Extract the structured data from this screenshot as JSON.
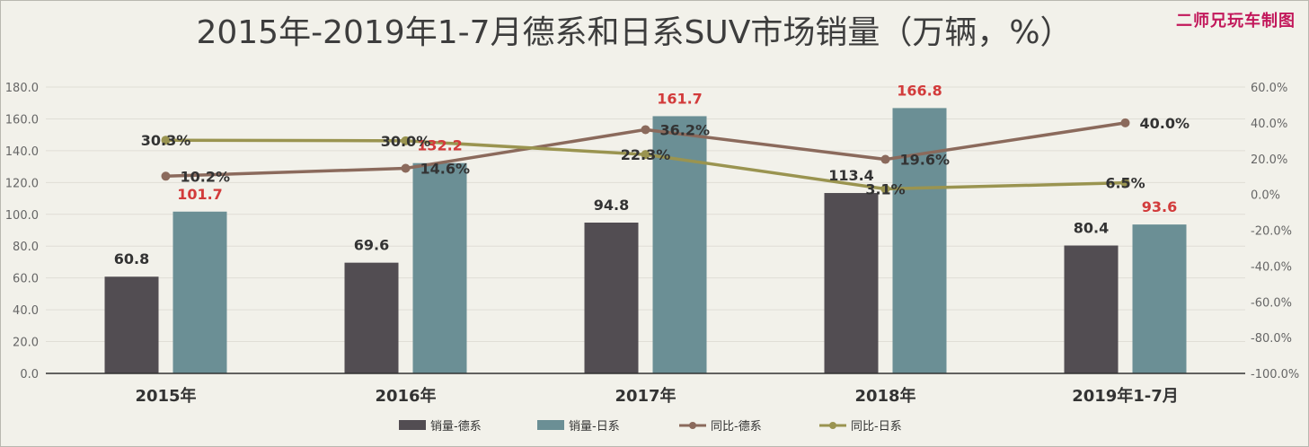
{
  "title": "2015年-2019年1-7月德系和日系SUV市场销量（万辆，%）",
  "watermark": "二师兄玩车制图",
  "colors": {
    "german_bar": "#524d52",
    "japanese_bar": "#6b8f95",
    "german_line": "#8b6a5c",
    "japanese_line": "#9a9450",
    "japanese_label": "#d23b3b",
    "text": "#333333",
    "axis_text": "#666666",
    "grid": "#e0ded6"
  },
  "chart_data": {
    "type": "bar",
    "categories": [
      "2015年",
      "2016年",
      "2017年",
      "2018年",
      "2019年1-7月"
    ],
    "series": [
      {
        "name": "销量-德系",
        "kind": "bar",
        "axis": "left",
        "values": [
          60.8,
          69.6,
          94.8,
          113.4,
          80.4
        ],
        "labels": [
          "60.8",
          "69.6",
          "94.8",
          "113.4",
          "80.4"
        ]
      },
      {
        "name": "销量-日系",
        "kind": "bar",
        "axis": "left",
        "values": [
          101.7,
          132.2,
          161.7,
          166.8,
          93.6
        ],
        "labels": [
          "101.7",
          "132.2",
          "161.7",
          "166.8",
          "93.6"
        ]
      },
      {
        "name": "同比-德系",
        "kind": "line",
        "axis": "right",
        "values": [
          10.2,
          14.6,
          36.2,
          19.6,
          40.0
        ],
        "labels": [
          "10.2%",
          "14.6%",
          "36.2%",
          "19.6%",
          "40.0%"
        ]
      },
      {
        "name": "同比-日系",
        "kind": "line",
        "axis": "right",
        "values": [
          30.3,
          30.0,
          22.3,
          3.1,
          6.5
        ],
        "labels": [
          "30.3%",
          "30.0%",
          "22.3%",
          "3.1%",
          "6.5%"
        ]
      }
    ],
    "left_axis": {
      "range": [
        0,
        180
      ],
      "ticks": [
        "0.0",
        "20.0",
        "40.0",
        "60.0",
        "80.0",
        "100.0",
        "120.0",
        "140.0",
        "160.0",
        "180.0"
      ]
    },
    "right_axis": {
      "range": [
        -100,
        60
      ],
      "ticks": [
        "-100.0%",
        "-80.0%",
        "-60.0%",
        "-40.0%",
        "-20.0%",
        "0.0%",
        "20.0%",
        "40.0%",
        "60.0%"
      ]
    },
    "grid": true,
    "legend_position": "bottom"
  }
}
